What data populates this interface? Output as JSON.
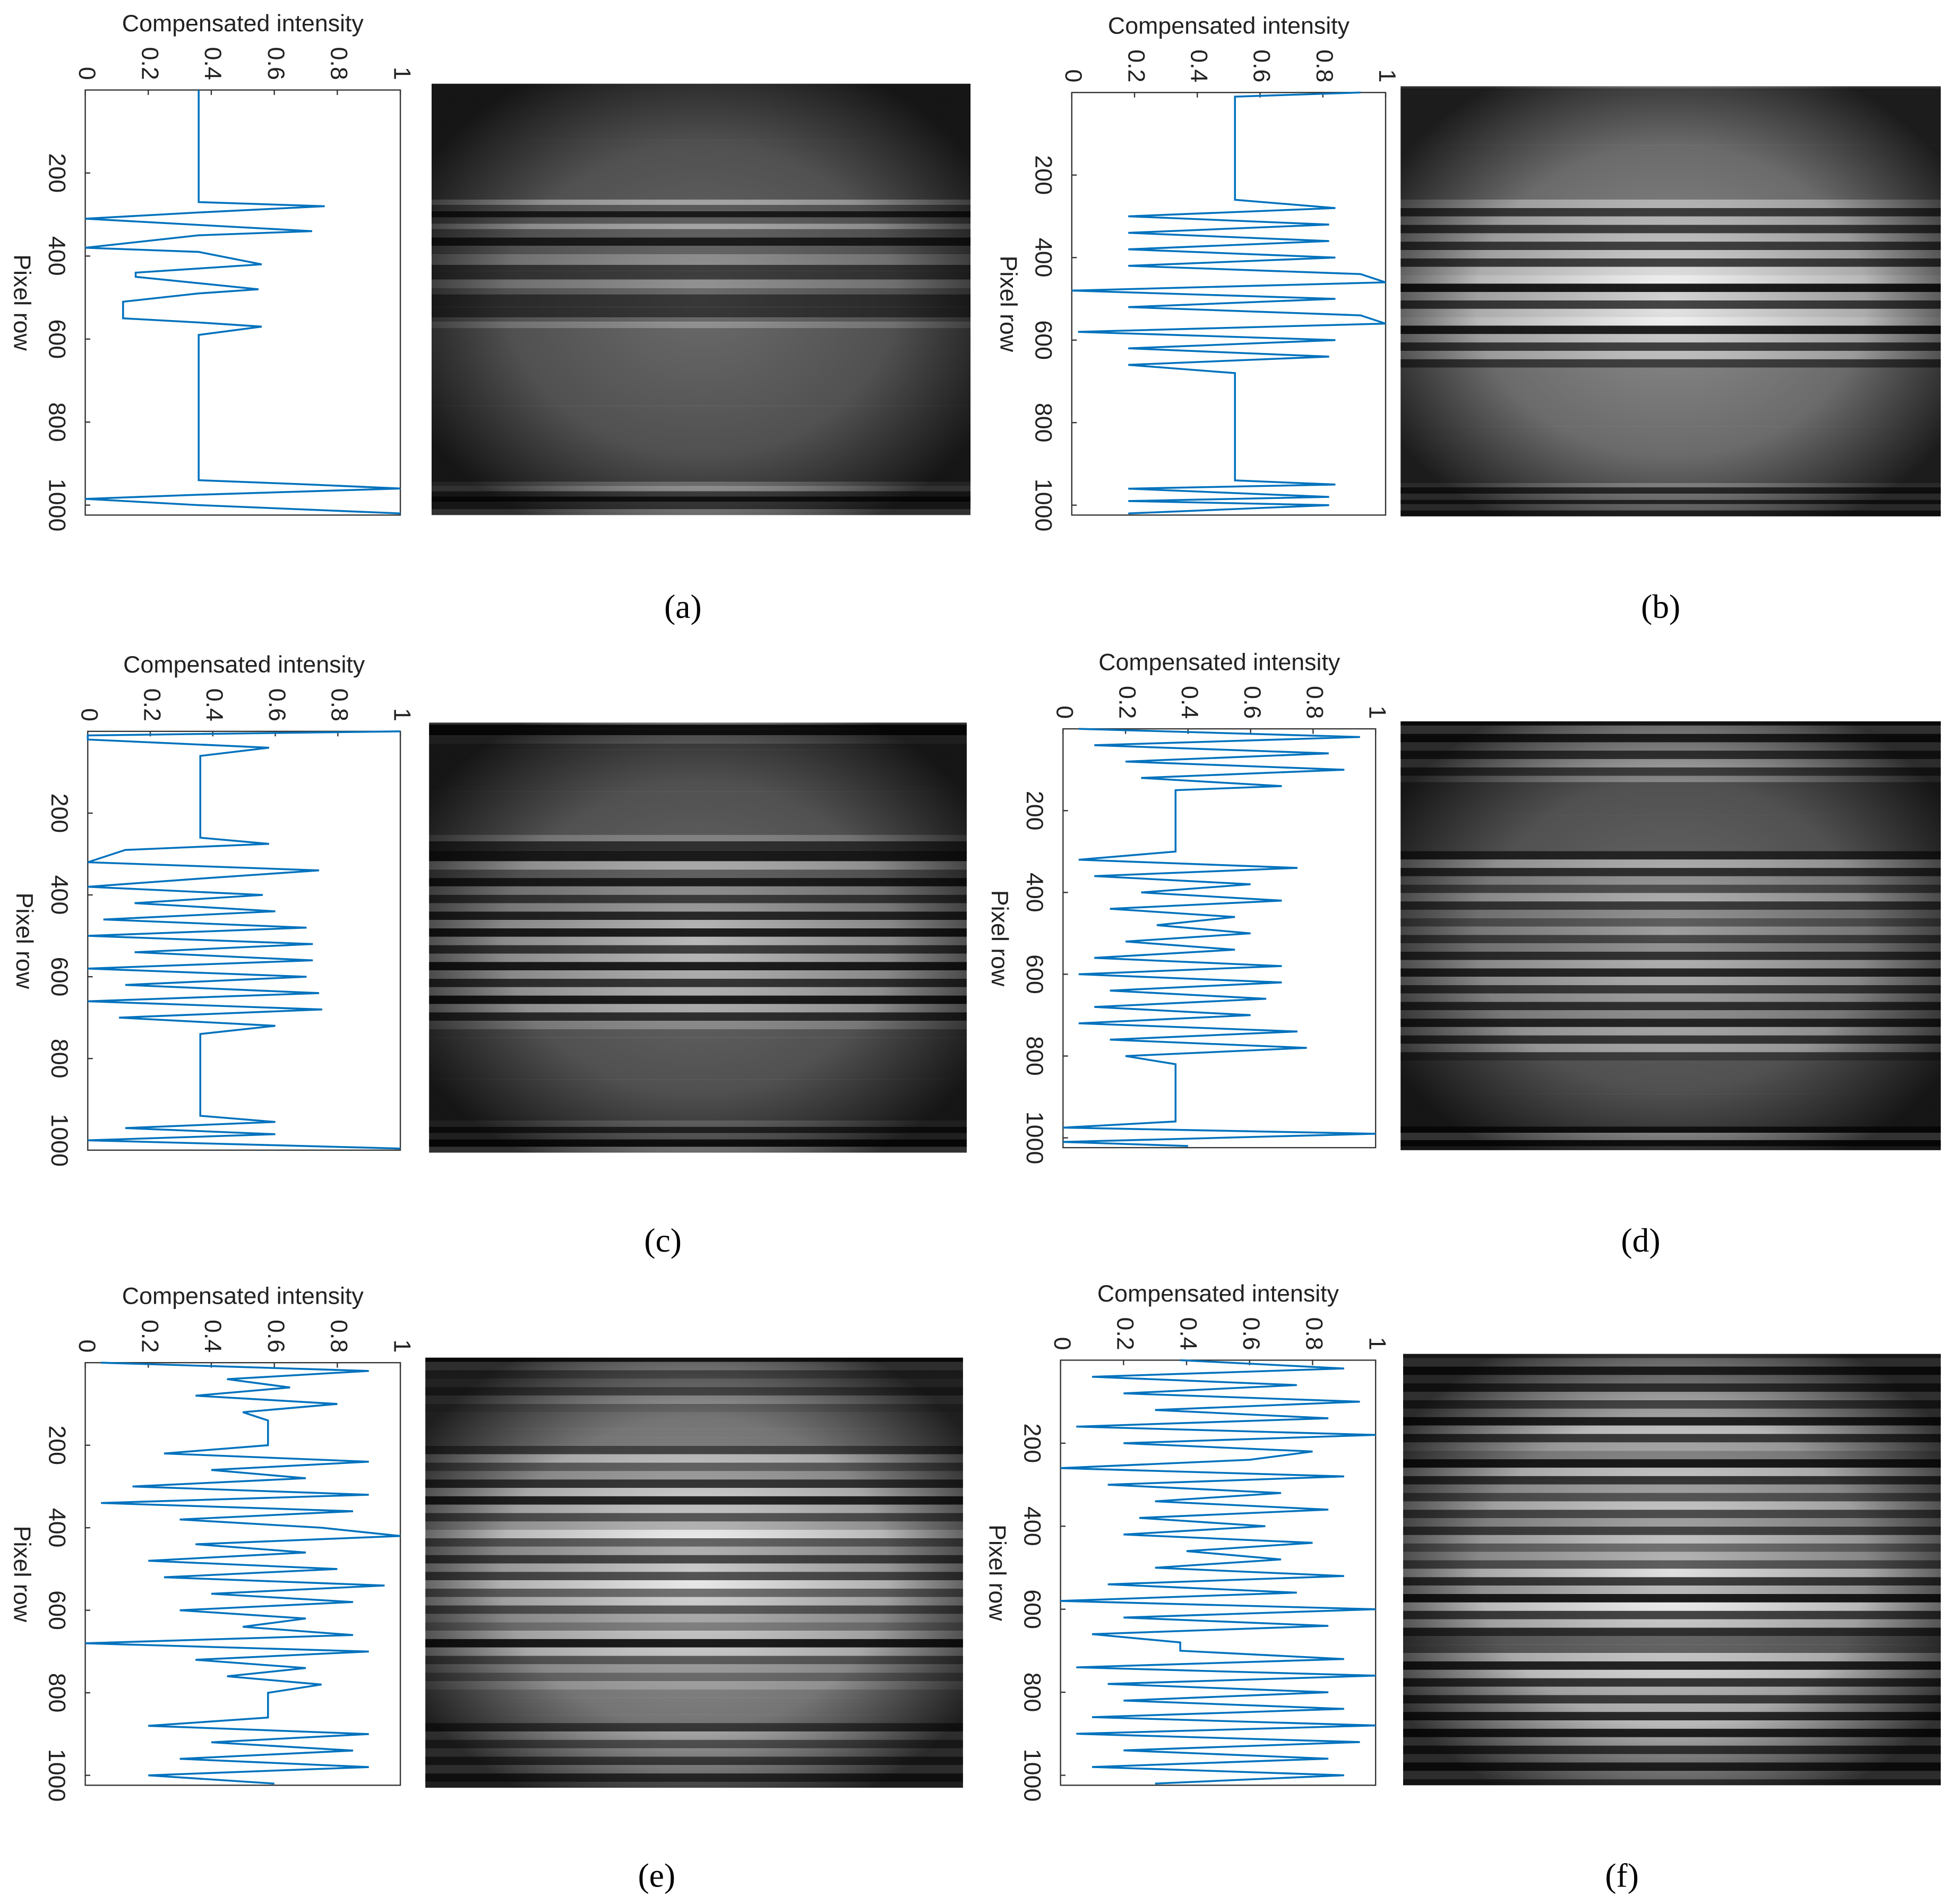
{
  "chart_data": [
    {
      "type": "line",
      "caption": "(a)",
      "xlabel": "Pixel row",
      "ylabel": "Compensated intensity",
      "color": "#0072bd",
      "x": [
        0,
        270,
        280,
        295,
        310,
        325,
        340,
        350,
        380,
        390,
        420,
        440,
        450,
        480,
        490,
        510,
        550,
        560,
        570,
        590,
        940,
        950,
        960,
        975,
        985,
        1000,
        1020
      ],
      "values": [
        0.36,
        0.36,
        0.76,
        0.36,
        0.0,
        0.36,
        0.72,
        0.36,
        0.0,
        0.36,
        0.56,
        0.16,
        0.16,
        0.55,
        0.36,
        0.12,
        0.12,
        0.36,
        0.56,
        0.36,
        0.36,
        0.7,
        1.0,
        0.36,
        0.0,
        0.36,
        1.0
      ],
      "xlim": [
        0,
        1024
      ],
      "xticks": [
        200,
        400,
        600,
        800,
        1000
      ],
      "ylim": [
        0,
        1
      ],
      "yticks": [
        0,
        0.2,
        0.4,
        0.6,
        0.8,
        1
      ]
    },
    {
      "type": "line",
      "caption": "(b)",
      "xlabel": "Pixel row",
      "ylabel": "Compensated intensity",
      "color": "#0072bd",
      "x": [
        0,
        10,
        20,
        260,
        280,
        300,
        320,
        340,
        360,
        380,
        400,
        420,
        440,
        460,
        480,
        500,
        520,
        540,
        560,
        580,
        600,
        620,
        640,
        660,
        680,
        940,
        950,
        960,
        980,
        990,
        1000,
        1020
      ],
      "values": [
        0.92,
        0.52,
        0.52,
        0.52,
        0.84,
        0.18,
        0.82,
        0.18,
        0.82,
        0.18,
        0.84,
        0.18,
        0.92,
        1.0,
        0.0,
        0.84,
        0.18,
        0.92,
        1.0,
        0.02,
        0.84,
        0.18,
        0.82,
        0.18,
        0.52,
        0.52,
        0.84,
        0.18,
        0.82,
        0.18,
        0.82,
        0.18
      ],
      "xlim": [
        0,
        1024
      ],
      "xticks": [
        200,
        400,
        600,
        800,
        1000
      ],
      "ylim": [
        0,
        1
      ],
      "yticks": [
        0,
        0.2,
        0.4,
        0.6,
        0.8,
        1
      ]
    },
    {
      "type": "line",
      "caption": "(c)",
      "xlabel": "Pixel row",
      "ylabel": "Compensated intensity",
      "color": "#0072bd",
      "x": [
        0,
        10,
        20,
        40,
        60,
        70,
        260,
        275,
        290,
        320,
        340,
        360,
        380,
        400,
        420,
        440,
        460,
        480,
        500,
        520,
        540,
        560,
        580,
        600,
        620,
        640,
        660,
        680,
        700,
        720,
        740,
        760,
        940,
        955,
        970,
        985,
        1000,
        1020
      ],
      "values": [
        1.0,
        0.0,
        0.0,
        0.58,
        0.36,
        0.36,
        0.36,
        0.58,
        0.12,
        0.0,
        0.74,
        0.36,
        0.0,
        0.56,
        0.15,
        0.6,
        0.05,
        0.7,
        0.0,
        0.72,
        0.15,
        0.72,
        0.0,
        0.7,
        0.12,
        0.74,
        0.0,
        0.75,
        0.1,
        0.6,
        0.36,
        0.36,
        0.36,
        0.6,
        0.12,
        0.6,
        0.0,
        1.0
      ],
      "xlim": [
        0,
        1024
      ],
      "xticks": [
        200,
        400,
        600,
        800,
        1000
      ],
      "ylim": [
        0,
        1
      ],
      "yticks": [
        0,
        0.2,
        0.4,
        0.6,
        0.8,
        1
      ]
    },
    {
      "type": "line",
      "caption": "(d)",
      "xlabel": "Pixel row",
      "ylabel": "Compensated intensity",
      "color": "#0072bd",
      "x": [
        0,
        20,
        40,
        60,
        80,
        100,
        120,
        140,
        150,
        300,
        320,
        340,
        360,
        380,
        400,
        420,
        440,
        460,
        480,
        500,
        520,
        540,
        560,
        580,
        600,
        620,
        640,
        660,
        680,
        700,
        720,
        740,
        760,
        780,
        800,
        820,
        960,
        975,
        990,
        1010,
        1020
      ],
      "values": [
        0.05,
        0.95,
        0.1,
        0.85,
        0.2,
        0.9,
        0.25,
        0.7,
        0.36,
        0.36,
        0.05,
        0.75,
        0.1,
        0.6,
        0.25,
        0.7,
        0.15,
        0.55,
        0.3,
        0.6,
        0.2,
        0.55,
        0.1,
        0.7,
        0.05,
        0.7,
        0.15,
        0.65,
        0.1,
        0.6,
        0.05,
        0.75,
        0.15,
        0.78,
        0.2,
        0.36,
        0.36,
        0.0,
        1.0,
        0.0,
        0.4
      ],
      "xlim": [
        0,
        1024
      ],
      "xticks": [
        200,
        400,
        600,
        800,
        1000
      ],
      "ylim": [
        0,
        1
      ],
      "yticks": [
        0,
        0.2,
        0.4,
        0.6,
        0.8,
        1
      ]
    },
    {
      "type": "line",
      "caption": "(e)",
      "xlabel": "Pixel row",
      "ylabel": "Compensated intensity",
      "color": "#0072bd",
      "x": [
        0,
        20,
        40,
        60,
        80,
        100,
        120,
        140,
        160,
        180,
        200,
        220,
        240,
        260,
        280,
        300,
        320,
        340,
        360,
        380,
        400,
        420,
        440,
        460,
        480,
        500,
        520,
        540,
        560,
        580,
        600,
        620,
        640,
        660,
        680,
        700,
        720,
        740,
        760,
        780,
        800,
        820,
        840,
        860,
        880,
        900,
        920,
        940,
        960,
        980,
        1000,
        1020
      ],
      "values": [
        0.05,
        0.9,
        0.45,
        0.65,
        0.35,
        0.8,
        0.5,
        0.58,
        0.58,
        0.58,
        0.58,
        0.25,
        0.9,
        0.4,
        0.7,
        0.15,
        0.9,
        0.05,
        0.85,
        0.3,
        0.75,
        1.0,
        0.35,
        0.7,
        0.2,
        0.8,
        0.25,
        0.95,
        0.4,
        0.85,
        0.3,
        0.7,
        0.5,
        0.85,
        0.0,
        0.9,
        0.35,
        0.7,
        0.45,
        0.75,
        0.58,
        0.58,
        0.58,
        0.58,
        0.2,
        0.9,
        0.4,
        0.85,
        0.3,
        0.9,
        0.2,
        0.6
      ],
      "xlim": [
        0,
        1024
      ],
      "xticks": [
        200,
        400,
        600,
        800,
        1000
      ],
      "ylim": [
        0,
        1
      ],
      "yticks": [
        0,
        0.2,
        0.4,
        0.6,
        0.8,
        1
      ]
    },
    {
      "type": "line",
      "caption": "(f)",
      "xlabel": "Pixel row",
      "ylabel": "Compensated intensity",
      "color": "#0072bd",
      "x": [
        0,
        20,
        40,
        60,
        80,
        100,
        120,
        140,
        160,
        180,
        200,
        220,
        240,
        260,
        280,
        300,
        320,
        340,
        360,
        380,
        400,
        420,
        440,
        460,
        480,
        500,
        520,
        540,
        560,
        580,
        600,
        620,
        640,
        660,
        680,
        700,
        720,
        740,
        760,
        780,
        800,
        820,
        840,
        860,
        880,
        900,
        920,
        940,
        960,
        980,
        1000,
        1020
      ],
      "values": [
        0.38,
        0.9,
        0.1,
        0.75,
        0.2,
        0.95,
        0.3,
        0.85,
        0.05,
        1.0,
        0.2,
        0.8,
        0.6,
        0.0,
        0.9,
        0.15,
        0.7,
        0.3,
        0.85,
        0.25,
        0.65,
        0.2,
        0.8,
        0.4,
        0.7,
        0.3,
        0.9,
        0.15,
        0.75,
        0.0,
        1.0,
        0.2,
        0.85,
        0.1,
        0.38,
        0.38,
        0.9,
        0.05,
        1.0,
        0.15,
        0.85,
        0.2,
        0.9,
        0.1,
        1.0,
        0.05,
        0.95,
        0.2,
        0.85,
        0.1,
        0.9,
        0.3
      ],
      "xlim": [
        0,
        1024
      ],
      "xticks": [
        200,
        400,
        600,
        800,
        1000
      ],
      "ylim": [
        0,
        1
      ],
      "yticks": [
        0,
        0.2,
        0.4,
        0.6,
        0.8,
        1
      ]
    }
  ]
}
